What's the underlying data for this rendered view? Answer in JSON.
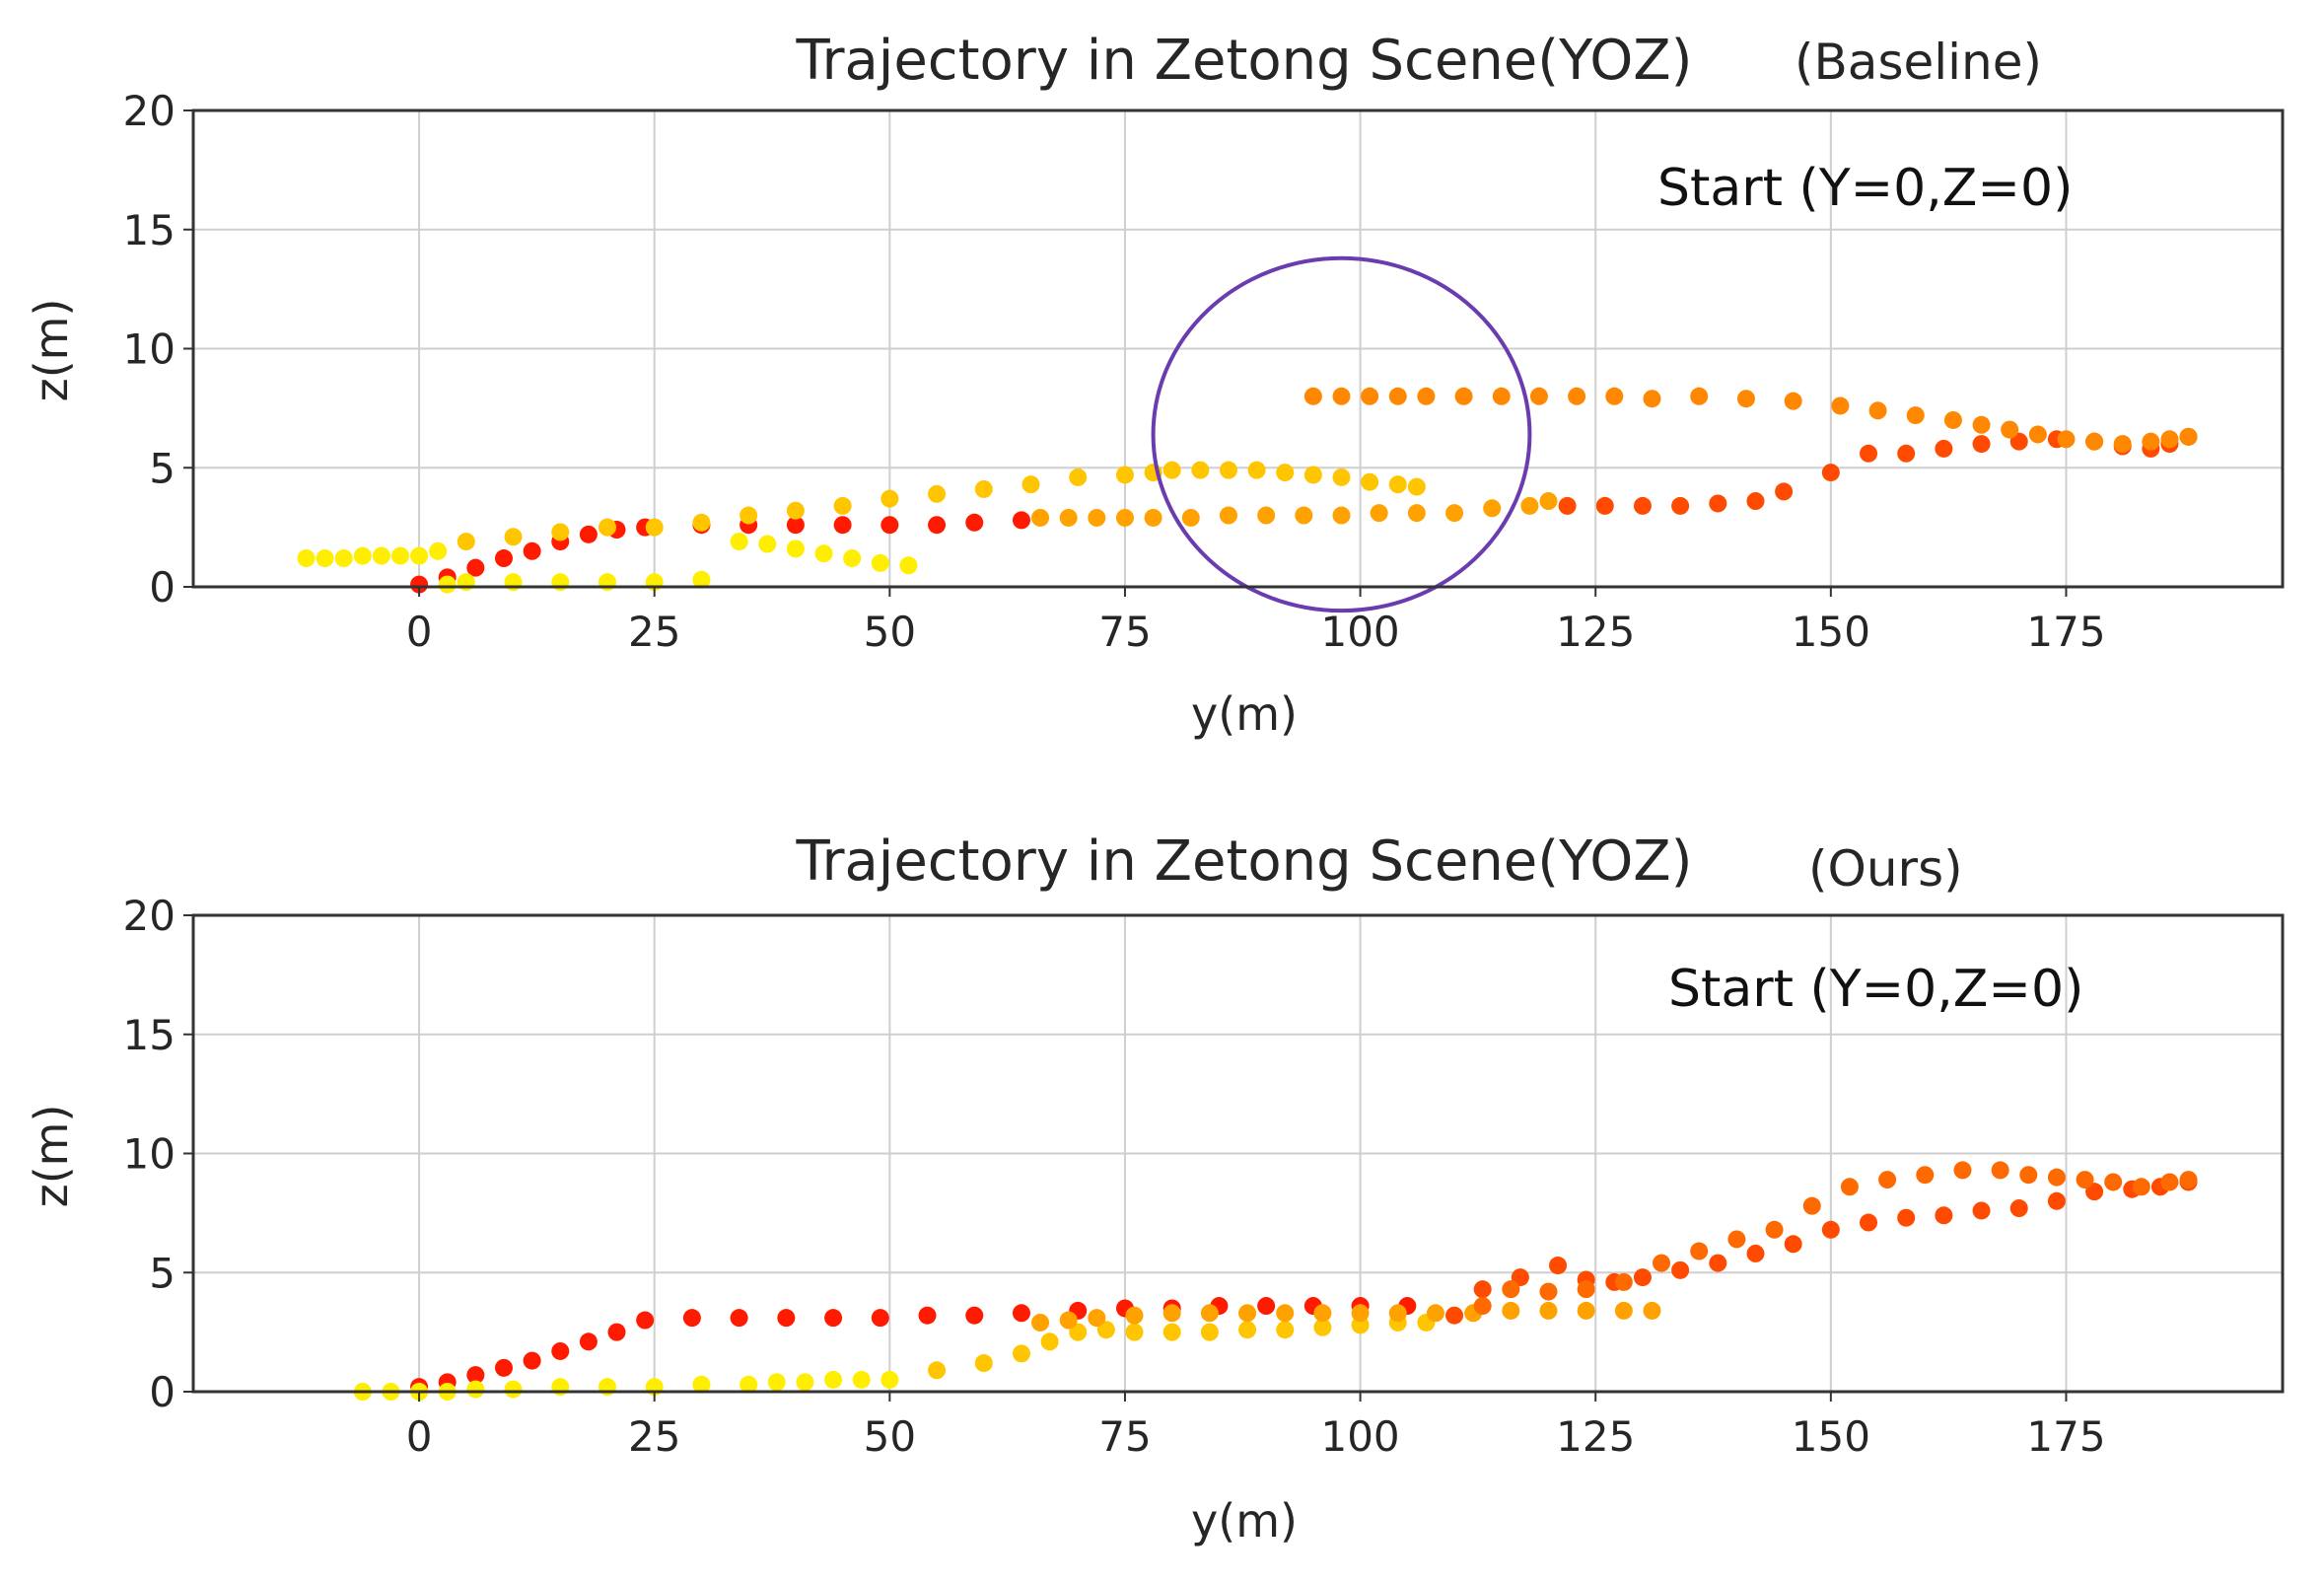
{
  "chart_data": [
    {
      "type": "scatter",
      "title": "Trajectory in Zetong Scene(YOZ)",
      "title_suffix": "(Baseline)",
      "xlabel": "y(m)",
      "ylabel": "z(m)",
      "xlim": [
        -24,
        198
      ],
      "ylim": [
        0,
        20
      ],
      "xticks": [
        0,
        25,
        50,
        75,
        100,
        125,
        150,
        175
      ],
      "yticks": [
        0,
        5,
        10,
        15,
        20
      ],
      "grid": true,
      "annotation": "Start  (Y=0,Z=0)",
      "highlight_circle": {
        "y": 98,
        "z": 6.4,
        "ry": 20,
        "rz": 7.4,
        "color": "#6a3cb0"
      },
      "series": [
        {
          "name": "red segment",
          "color": "#ff1a00",
          "points": [
            [
              0,
              0.1
            ],
            [
              3,
              0.4
            ],
            [
              6,
              0.8
            ],
            [
              9,
              1.2
            ],
            [
              12,
              1.5
            ],
            [
              15,
              1.9
            ],
            [
              18,
              2.2
            ],
            [
              21,
              2.4
            ],
            [
              24,
              2.5
            ],
            [
              30,
              2.6
            ],
            [
              35,
              2.6
            ],
            [
              40,
              2.6
            ],
            [
              45,
              2.6
            ],
            [
              50,
              2.6
            ],
            [
              55,
              2.6
            ],
            [
              59,
              2.7
            ],
            [
              64,
              2.8
            ]
          ]
        },
        {
          "name": "yellow start",
          "color": "#ffee00",
          "points": [
            [
              -12,
              1.2
            ],
            [
              -10,
              1.2
            ],
            [
              -8,
              1.2
            ],
            [
              -6,
              1.3
            ],
            [
              -4,
              1.3
            ],
            [
              -2,
              1.3
            ],
            [
              0,
              1.3
            ],
            [
              2,
              1.5
            ],
            [
              3,
              0.1
            ],
            [
              5,
              0.2
            ],
            [
              10,
              0.2
            ],
            [
              15,
              0.2
            ],
            [
              20,
              0.2
            ],
            [
              25,
              0.2
            ],
            [
              30,
              0.3
            ],
            [
              34,
              1.9
            ],
            [
              37,
              1.8
            ],
            [
              40,
              1.6
            ],
            [
              43,
              1.4
            ],
            [
              46,
              1.2
            ],
            [
              49,
              1.0
            ],
            [
              52,
              0.9
            ]
          ]
        },
        {
          "name": "yellow-orange arc",
          "color": "#ffc600",
          "points": [
            [
              5,
              1.9
            ],
            [
              10,
              2.1
            ],
            [
              15,
              2.3
            ],
            [
              20,
              2.5
            ],
            [
              25,
              2.5
            ],
            [
              30,
              2.7
            ],
            [
              35,
              3.0
            ],
            [
              40,
              3.2
            ],
            [
              45,
              3.4
            ],
            [
              50,
              3.7
            ],
            [
              55,
              3.9
            ],
            [
              60,
              4.1
            ],
            [
              65,
              4.3
            ],
            [
              70,
              4.6
            ],
            [
              75,
              4.7
            ],
            [
              78,
              4.8
            ],
            [
              80,
              4.9
            ],
            [
              83,
              4.9
            ],
            [
              86,
              4.9
            ],
            [
              89,
              4.9
            ],
            [
              92,
              4.8
            ],
            [
              95,
              4.7
            ],
            [
              98,
              4.6
            ],
            [
              101,
              4.4
            ],
            [
              104,
              4.3
            ],
            [
              106,
              4.2
            ]
          ]
        },
        {
          "name": "orange lower",
          "color": "#ffa200",
          "points": [
            [
              66,
              2.9
            ],
            [
              69,
              2.9
            ],
            [
              72,
              2.9
            ],
            [
              75,
              2.9
            ],
            [
              78,
              2.9
            ],
            [
              82,
              2.9
            ],
            [
              86,
              3.0
            ],
            [
              90,
              3.0
            ],
            [
              94,
              3.0
            ],
            [
              98,
              3.0
            ],
            [
              102,
              3.1
            ],
            [
              106,
              3.1
            ],
            [
              110,
              3.1
            ],
            [
              114,
              3.3
            ],
            [
              118,
              3.4
            ],
            [
              120,
              3.6
            ]
          ]
        },
        {
          "name": "orange-red",
          "color": "#ff4a00",
          "points": [
            [
              122,
              3.4
            ],
            [
              126,
              3.4
            ],
            [
              130,
              3.4
            ],
            [
              134,
              3.4
            ],
            [
              138,
              3.5
            ],
            [
              142,
              3.6
            ],
            [
              145,
              4.0
            ],
            [
              150,
              4.8
            ],
            [
              154,
              5.6
            ],
            [
              158,
              5.6
            ],
            [
              162,
              5.8
            ],
            [
              166,
              6.0
            ],
            [
              170,
              6.1
            ],
            [
              174,
              6.2
            ],
            [
              178,
              6.1
            ],
            [
              181,
              5.9
            ],
            [
              184,
              5.8
            ],
            [
              186,
              6.0
            ],
            [
              188,
              6.3
            ]
          ]
        },
        {
          "name": "orange upper",
          "color": "#ff8800",
          "points": [
            [
              95,
              8.0
            ],
            [
              98,
              8.0
            ],
            [
              101,
              8.0
            ],
            [
              104,
              8.0
            ],
            [
              107,
              8.0
            ],
            [
              111,
              8.0
            ],
            [
              115,
              8.0
            ],
            [
              119,
              8.0
            ],
            [
              123,
              8.0
            ],
            [
              127,
              8.0
            ],
            [
              131,
              7.9
            ],
            [
              136,
              8.0
            ],
            [
              141,
              7.9
            ],
            [
              146,
              7.8
            ],
            [
              151,
              7.6
            ],
            [
              155,
              7.4
            ],
            [
              159,
              7.2
            ],
            [
              163,
              7.0
            ],
            [
              166,
              6.8
            ],
            [
              169,
              6.6
            ],
            [
              172,
              6.4
            ],
            [
              175,
              6.2
            ],
            [
              178,
              6.1
            ],
            [
              181,
              6.0
            ],
            [
              184,
              6.1
            ],
            [
              186,
              6.2
            ],
            [
              188,
              6.3
            ]
          ]
        }
      ]
    },
    {
      "type": "scatter",
      "title": "Trajectory in Zetong Scene(YOZ)",
      "title_suffix": "(Ours)",
      "xlabel": "y(m)",
      "ylabel": "z(m)",
      "xlim": [
        -24,
        198
      ],
      "ylim": [
        0,
        20
      ],
      "xticks": [
        0,
        25,
        50,
        75,
        100,
        125,
        150,
        175
      ],
      "yticks": [
        0,
        5,
        10,
        15,
        20
      ],
      "grid": true,
      "annotation": "Start  (Y=0,Z=0)",
      "series": [
        {
          "name": "red segment",
          "color": "#ff1a00",
          "points": [
            [
              0,
              0.2
            ],
            [
              3,
              0.4
            ],
            [
              6,
              0.7
            ],
            [
              9,
              1.0
            ],
            [
              12,
              1.3
            ],
            [
              15,
              1.7
            ],
            [
              18,
              2.1
            ],
            [
              21,
              2.5
            ],
            [
              24,
              3.0
            ],
            [
              29,
              3.1
            ],
            [
              34,
              3.1
            ],
            [
              39,
              3.1
            ],
            [
              44,
              3.1
            ],
            [
              49,
              3.1
            ],
            [
              54,
              3.2
            ],
            [
              59,
              3.2
            ],
            [
              64,
              3.3
            ],
            [
              70,
              3.4
            ],
            [
              75,
              3.5
            ],
            [
              80,
              3.5
            ],
            [
              85,
              3.6
            ],
            [
              90,
              3.6
            ],
            [
              95,
              3.6
            ],
            [
              100,
              3.6
            ],
            [
              105,
              3.6
            ]
          ]
        },
        {
          "name": "yellow start",
          "color": "#ffee00",
          "points": [
            [
              -6,
              0.0
            ],
            [
              -3,
              0.0
            ],
            [
              0,
              0.0
            ],
            [
              3,
              0.0
            ],
            [
              6,
              0.1
            ],
            [
              10,
              0.1
            ],
            [
              15,
              0.2
            ],
            [
              20,
              0.2
            ],
            [
              25,
              0.2
            ],
            [
              30,
              0.3
            ],
            [
              35,
              0.3
            ],
            [
              38,
              0.4
            ],
            [
              41,
              0.4
            ],
            [
              44,
              0.5
            ],
            [
              47,
              0.5
            ],
            [
              50,
              0.5
            ]
          ]
        },
        {
          "name": "yellow-orange",
          "color": "#ffc600",
          "points": [
            [
              55,
              0.9
            ],
            [
              60,
              1.2
            ],
            [
              64,
              1.6
            ],
            [
              67,
              2.1
            ],
            [
              70,
              2.5
            ],
            [
              73,
              2.6
            ],
            [
              76,
              2.5
            ],
            [
              80,
              2.5
            ],
            [
              84,
              2.5
            ],
            [
              88,
              2.6
            ],
            [
              92,
              2.6
            ],
            [
              96,
              2.7
            ],
            [
              100,
              2.8
            ],
            [
              104,
              2.9
            ],
            [
              107,
              2.9
            ]
          ]
        },
        {
          "name": "orange",
          "color": "#ffa200",
          "points": [
            [
              66,
              2.9
            ],
            [
              69,
              3.0
            ],
            [
              72,
              3.1
            ],
            [
              76,
              3.2
            ],
            [
              80,
              3.3
            ],
            [
              84,
              3.3
            ],
            [
              88,
              3.3
            ],
            [
              92,
              3.3
            ],
            [
              96,
              3.3
            ],
            [
              100,
              3.3
            ],
            [
              104,
              3.3
            ],
            [
              108,
              3.3
            ],
            [
              112,
              3.3
            ],
            [
              116,
              3.4
            ],
            [
              120,
              3.4
            ],
            [
              124,
              3.4
            ],
            [
              128,
              3.4
            ],
            [
              131,
              3.4
            ]
          ]
        },
        {
          "name": "orange-red",
          "color": "#ff4a00",
          "points": [
            [
              110,
              3.2
            ],
            [
              113,
              4.3
            ],
            [
              117,
              4.8
            ],
            [
              121,
              5.3
            ],
            [
              124,
              4.7
            ],
            [
              127,
              4.6
            ],
            [
              130,
              4.8
            ],
            [
              134,
              5.1
            ],
            [
              138,
              5.4
            ],
            [
              142,
              5.8
            ],
            [
              146,
              6.2
            ],
            [
              150,
              6.8
            ],
            [
              154,
              7.1
            ],
            [
              158,
              7.3
            ],
            [
              162,
              7.4
            ],
            [
              166,
              7.6
            ],
            [
              170,
              7.7
            ],
            [
              174,
              8.0
            ],
            [
              178,
              8.4
            ],
            [
              182,
              8.5
            ],
            [
              185,
              8.6
            ],
            [
              188,
              8.8
            ]
          ]
        },
        {
          "name": "orange upper",
          "color": "#ff6a00",
          "points": [
            [
              113,
              3.6
            ],
            [
              116,
              4.3
            ],
            [
              120,
              4.2
            ],
            [
              124,
              4.3
            ],
            [
              128,
              4.6
            ],
            [
              132,
              5.4
            ],
            [
              136,
              5.9
            ],
            [
              140,
              6.4
            ],
            [
              144,
              6.8
            ],
            [
              148,
              7.8
            ],
            [
              152,
              8.6
            ],
            [
              156,
              8.9
            ],
            [
              160,
              9.1
            ],
            [
              164,
              9.3
            ],
            [
              168,
              9.3
            ],
            [
              171,
              9.1
            ],
            [
              174,
              9.0
            ],
            [
              177,
              8.9
            ],
            [
              180,
              8.8
            ],
            [
              183,
              8.6
            ],
            [
              186,
              8.8
            ],
            [
              188,
              8.9
            ]
          ]
        }
      ]
    }
  ]
}
